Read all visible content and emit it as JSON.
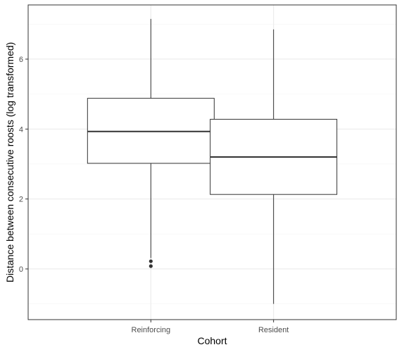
{
  "chart_data": {
    "type": "boxplot",
    "xlabel": "Cohort",
    "ylabel": "Distance between consecutive roosts (log transformed)",
    "ylim": [
      -1.45,
      7.55
    ],
    "y_ticks": [
      0,
      2,
      4,
      6
    ],
    "y_tick_labels": [
      "0",
      "2",
      "4",
      "6"
    ],
    "categories": [
      "Reinforcing",
      "Resident"
    ],
    "boxes": [
      {
        "category": "Reinforcing",
        "whisker_low": 0.31,
        "q1": 3.02,
        "median": 3.93,
        "q3": 4.88,
        "whisker_high": 7.15,
        "outliers": [
          0.22,
          0.08
        ]
      },
      {
        "category": "Resident",
        "whisker_low": -1.0,
        "q1": 2.13,
        "median": 3.2,
        "q3": 4.28,
        "whisker_high": 6.85,
        "outliers": []
      }
    ],
    "grid": true,
    "legend": "none"
  },
  "colors": {
    "background": "#ffffff",
    "grid_major": "#ebebeb",
    "grid_minor": "#f5f5f5",
    "panel_border": "#333333",
    "box_stroke": "#333333",
    "outlier": "#333333"
  }
}
